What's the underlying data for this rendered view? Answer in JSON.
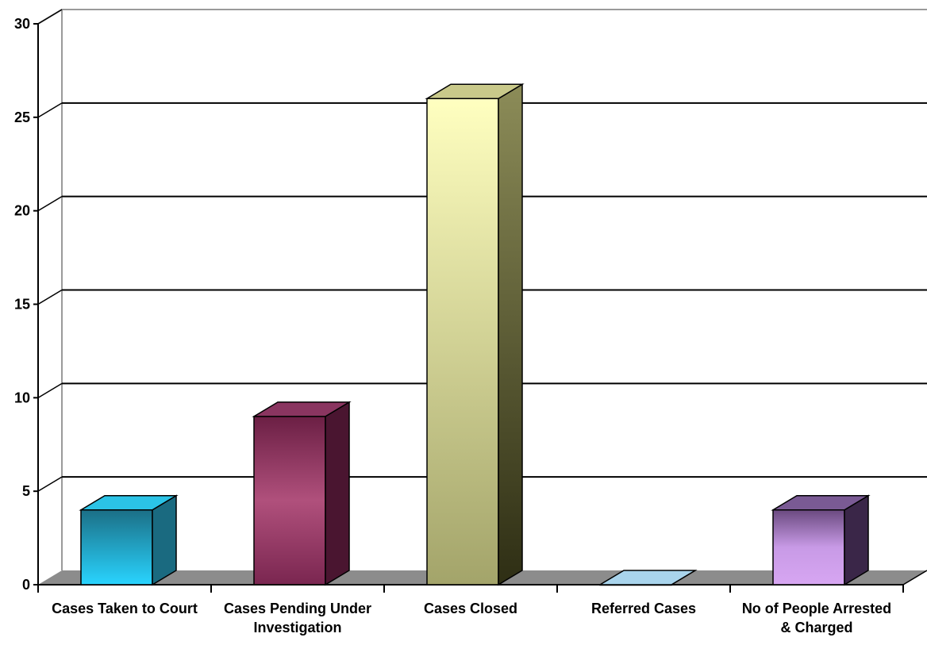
{
  "chart_data": {
    "type": "bar",
    "categories": [
      [
        "Cases Taken to Court"
      ],
      [
        "Cases Pending Under",
        "Investigation"
      ],
      [
        "Cases Closed"
      ],
      [
        "Referred Cases"
      ],
      [
        "No of People Arrested",
        "& Charged"
      ]
    ],
    "values": [
      4,
      9,
      26,
      0,
      4
    ],
    "ylim": [
      0,
      30
    ],
    "yticks": [
      "0",
      "5",
      "10",
      "15",
      "20",
      "25",
      "30"
    ],
    "grid": true,
    "legend": "none",
    "title": "",
    "xlabel": "",
    "ylabel": ""
  },
  "colors": {
    "bars": [
      {
        "front_top": "#1b6f86",
        "front_bottom": "#29d4ff",
        "side": "#1a6a80",
        "top": "#2bc3e6"
      },
      {
        "front_top": "#6b1f44",
        "front_bottom": "#7a2650",
        "front_mid": "#b0507c",
        "side": "#4a1530",
        "top": "#8a3560"
      },
      {
        "front_top": "#ffffc0",
        "front_bottom": "#a3a46a",
        "side": "#2e2e14",
        "side_top": "#8c8c58",
        "top": "#c9c98a"
      },
      {
        "front_top": "#cfe8f5",
        "front_bottom": "#cfe8f5",
        "side": "#a9d4ec",
        "top": "#a9d4ec"
      },
      {
        "front_top": "#6a4a80",
        "front_bottom": "#d7a6f2",
        "front_mid": "#c89ae6",
        "side": "#3a2648",
        "top": "#7a5a94"
      }
    ],
    "floor": "#8c8c8c",
    "wall_border": "#9a9a9a",
    "gridline": "#000000"
  }
}
